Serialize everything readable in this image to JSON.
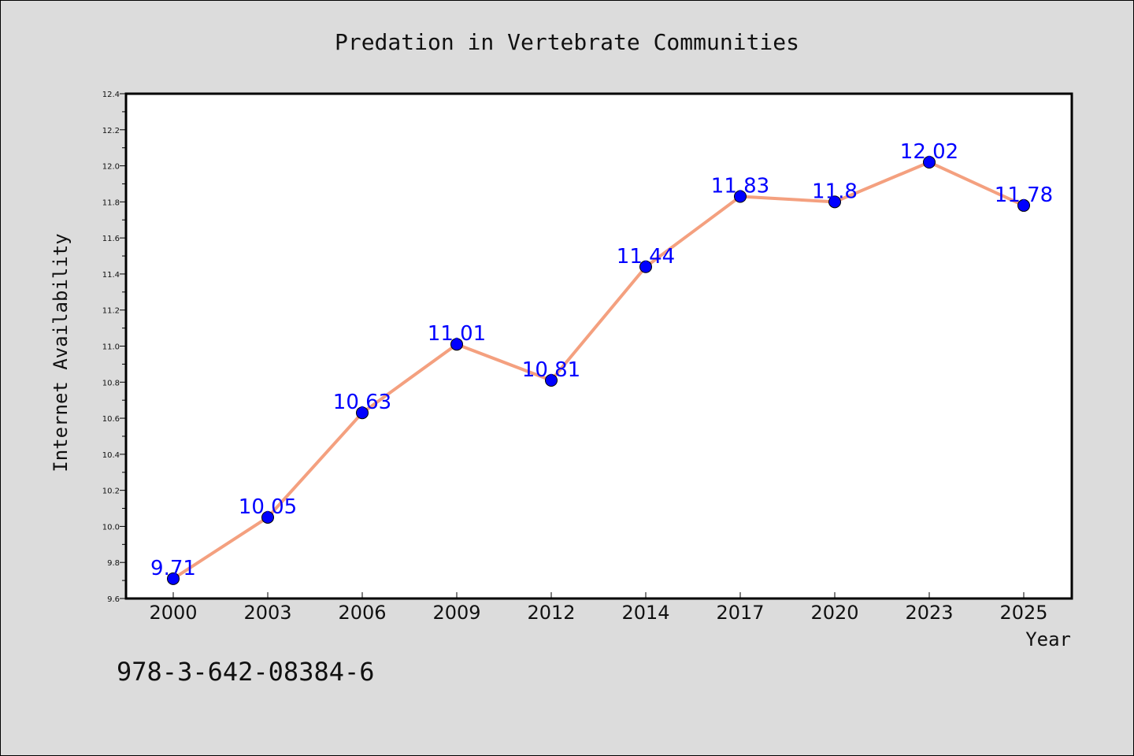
{
  "chart_data": {
    "type": "line",
    "title": "Predation in Vertebrate Communities",
    "xlabel": "Year",
    "ylabel": "Internet Availability",
    "categories": [
      "2000",
      "2003",
      "2006",
      "2009",
      "2012",
      "2014",
      "2017",
      "2020",
      "2023",
      "2025"
    ],
    "series": [
      {
        "values": [
          9.71,
          10.05,
          10.63,
          11.01,
          10.81,
          11.44,
          11.83,
          11.8,
          12.02,
          11.78
        ],
        "labels": [
          "9.71",
          "10.05",
          "10.63",
          "11.01",
          "10.81",
          "11.44",
          "11.83",
          "11.8",
          "12.02",
          "11.78"
        ]
      }
    ],
    "ylim": [
      9.6,
      12.4
    ],
    "yticks": [
      "9.6",
      "9.8",
      "10.0",
      "10.2",
      "10.4",
      "10.6",
      "10.8",
      "11.0",
      "11.2",
      "11.4",
      "11.6",
      "11.8",
      "12.0",
      "12.2",
      "12.4"
    ],
    "grid": false,
    "line_color": "#f4a07f",
    "marker_color": "#0000ff",
    "label_color": "#0000ff"
  },
  "footer": {
    "text": "978-3-642-08384-6"
  }
}
